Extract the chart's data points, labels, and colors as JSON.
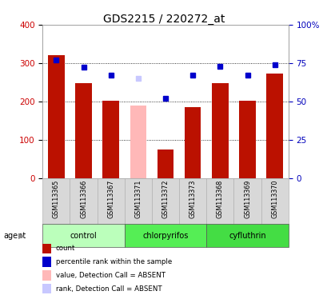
{
  "title": "GDS2215 / 220272_at",
  "samples": [
    "GSM113365",
    "GSM113366",
    "GSM113367",
    "GSM113371",
    "GSM113372",
    "GSM113373",
    "GSM113368",
    "GSM113369",
    "GSM113370"
  ],
  "bar_values": [
    320,
    248,
    202,
    190,
    75,
    185,
    248,
    202,
    272
  ],
  "bar_colors": [
    "#bb1100",
    "#bb1100",
    "#bb1100",
    "#ffb8b8",
    "#bb1100",
    "#bb1100",
    "#bb1100",
    "#bb1100",
    "#bb1100"
  ],
  "rank_values": [
    77,
    72,
    67,
    65,
    52,
    67,
    73,
    67,
    74
  ],
  "rank_colors": [
    "#0000cc",
    "#0000cc",
    "#0000cc",
    "#c8c8ff",
    "#0000cc",
    "#0000cc",
    "#0000cc",
    "#0000cc",
    "#0000cc"
  ],
  "absent_bar": 3,
  "groups": [
    {
      "label": "control",
      "start": 0,
      "end": 3,
      "color": "#bbffbb"
    },
    {
      "label": "chlorpyrifos",
      "start": 3,
      "end": 6,
      "color": "#55ee55"
    },
    {
      "label": "cyfluthrin",
      "start": 6,
      "end": 9,
      "color": "#44dd44"
    }
  ],
  "left_ticks": [
    0,
    100,
    200,
    300,
    400
  ],
  "right_ticks": [
    0,
    25,
    50,
    75,
    100
  ],
  "right_tick_labels": [
    "0",
    "25",
    "50",
    "75",
    "100%"
  ],
  "left_color": "#cc0000",
  "right_color": "#0000bb",
  "legend_items": [
    {
      "label": "count",
      "color": "#bb1100"
    },
    {
      "label": "percentile rank within the sample",
      "color": "#0000cc"
    },
    {
      "label": "value, Detection Call = ABSENT",
      "color": "#ffb8b8"
    },
    {
      "label": "rank, Detection Call = ABSENT",
      "color": "#c8c8ff"
    }
  ]
}
